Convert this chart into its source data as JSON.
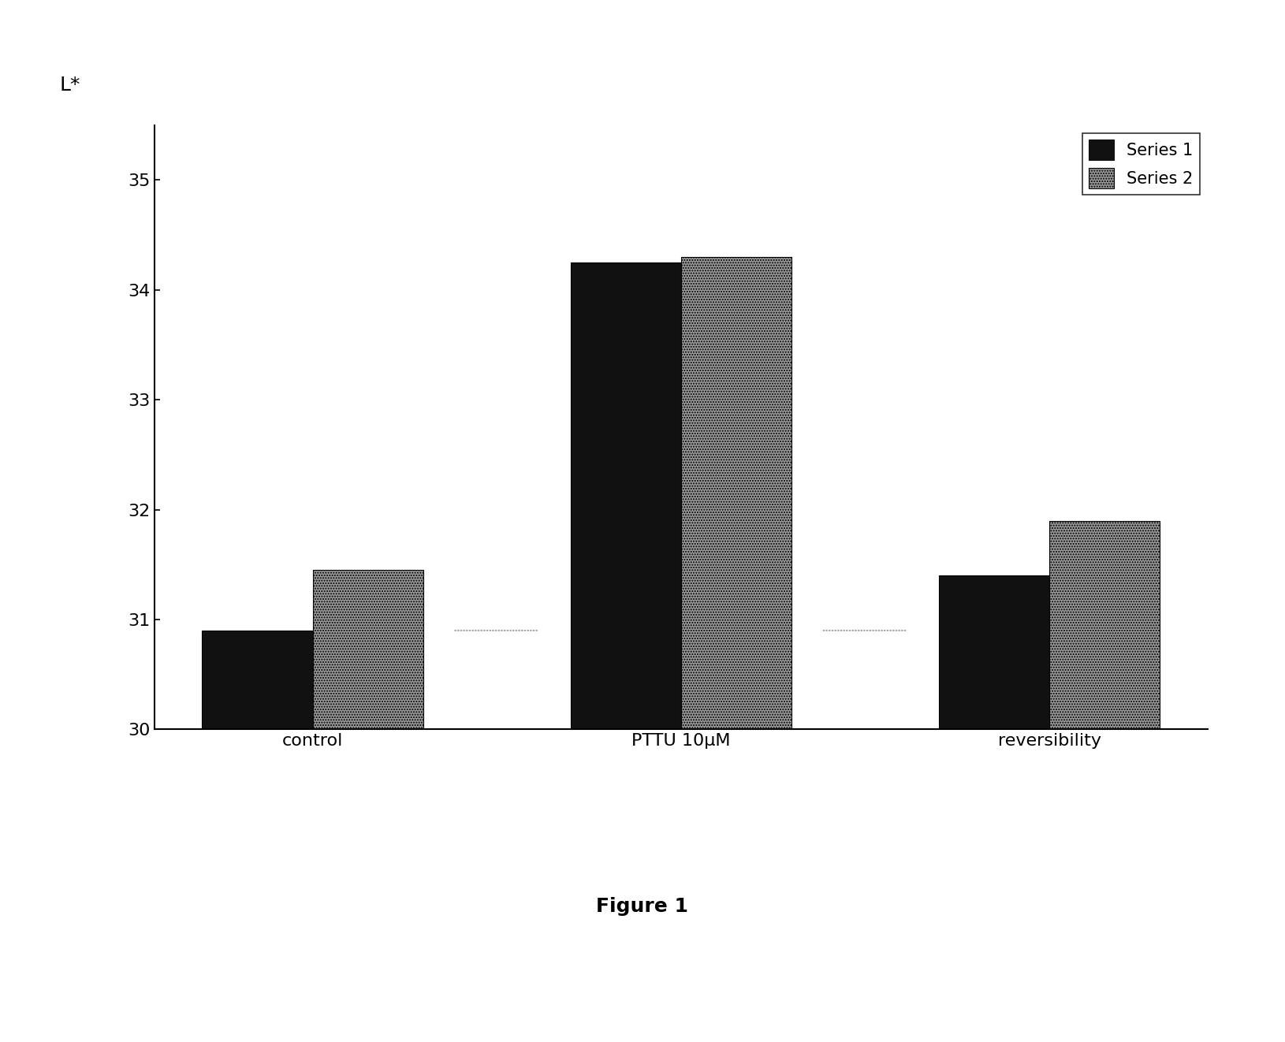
{
  "categories": [
    "control",
    "PTTU 10μM",
    "reversibility"
  ],
  "series1_values": [
    30.9,
    34.25,
    31.4
  ],
  "series2_values": [
    31.45,
    34.3,
    31.9
  ],
  "series1_label": "Series 1",
  "series2_label": "Series 2",
  "series1_color": "#111111",
  "series2_color": "#999999",
  "series2_hatch": ".....",
  "ylabel": "L*",
  "ylim_min": 30,
  "ylim_max": 35.5,
  "yticks": [
    30,
    31,
    32,
    33,
    34,
    35
  ],
  "figure_caption": "Figure 1",
  "bar_width": 0.3,
  "background_color": "#ffffff",
  "caption_fontsize": 18,
  "tick_fontsize": 16,
  "label_fontsize": 18,
  "legend_fontsize": 15
}
